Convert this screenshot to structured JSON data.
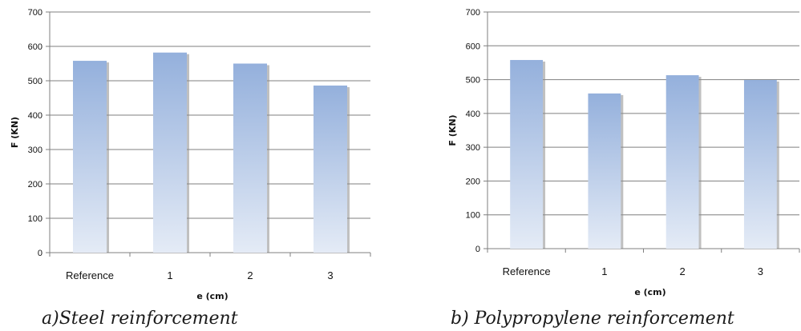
{
  "chart_data": [
    {
      "type": "bar",
      "categories": [
        "Reference",
        "1",
        "2",
        "3"
      ],
      "values": [
        558,
        582,
        550,
        486
      ],
      "xlabel": "e (cm)",
      "ylabel": "F (KN)",
      "ylim": [
        0,
        700
      ],
      "yticks": [
        "0",
        "100",
        "200",
        "300",
        "400",
        "500",
        "600",
        "700"
      ],
      "grid": true,
      "caption": "a)Steel reinforcement"
    },
    {
      "type": "bar",
      "categories": [
        "Reference",
        "1",
        "2",
        "3"
      ],
      "values": [
        558,
        459,
        513,
        499
      ],
      "xlabel": "e (cm)",
      "ylabel": "F (KN)",
      "ylim": [
        0,
        700
      ],
      "yticks": [
        "0",
        "100",
        "200",
        "300",
        "400",
        "500",
        "600",
        "700"
      ],
      "grid": true,
      "caption": "b) Polypropylene reinforcement"
    }
  ],
  "colors": {
    "bar_top": "#94b0dc",
    "bar_bottom": "#e4ebf6",
    "bar_shadow": "#8c8c8c",
    "grid": "#7f7f7f",
    "axis": "#7f7f7f"
  }
}
